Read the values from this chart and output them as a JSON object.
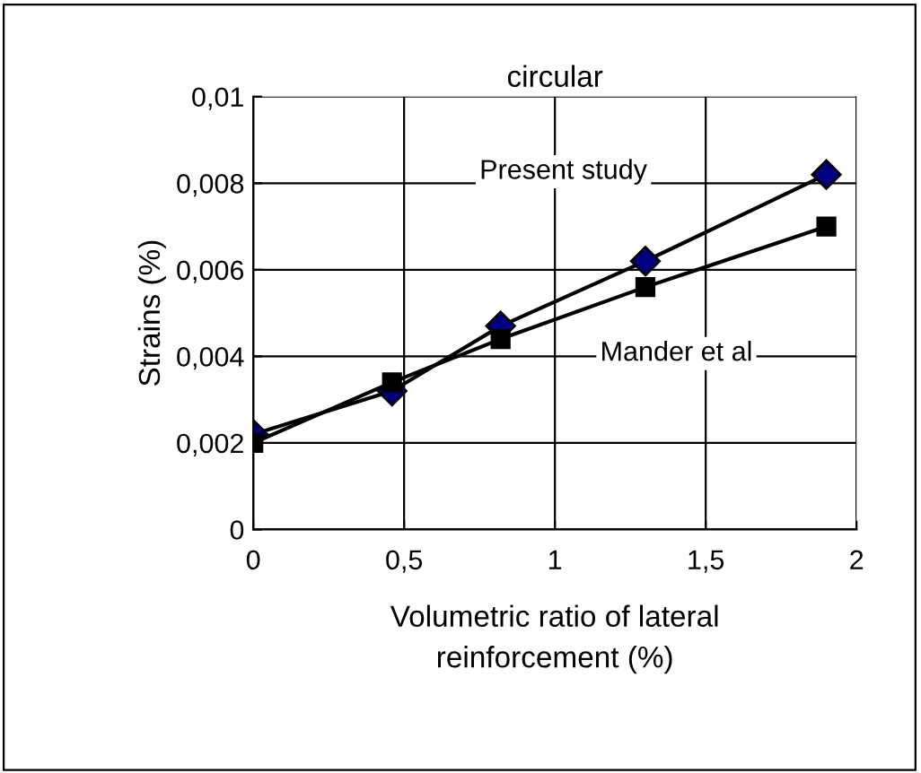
{
  "chart_data": {
    "type": "line",
    "title": "circular",
    "xlabel": "Volumetric ratio of lateral\nreinforcement (%)",
    "ylabel": "Strains (%)",
    "x": [
      0,
      0.46,
      0.82,
      1.3,
      1.9
    ],
    "series": [
      {
        "name": "Present study",
        "color": "#000080",
        "marker": "diamond",
        "values": [
          0.0022,
          0.0032,
          0.0047,
          0.0062,
          0.0082
        ]
      },
      {
        "name": "Mander et al",
        "color": "#000000",
        "marker": "square",
        "values": [
          0.002,
          0.0034,
          0.0044,
          0.0056,
          0.007
        ]
      }
    ],
    "xlim": [
      0,
      2
    ],
    "ylim": [
      0,
      0.01
    ],
    "xticks": [
      0,
      {
        "value": 0.5,
        "label": "0,5"
      },
      1,
      {
        "value": 1.5,
        "label": "1,5"
      },
      2
    ],
    "yticks": [
      0,
      {
        "value": 0.002,
        "label": "0,002"
      },
      {
        "value": 0.004,
        "label": "0,004"
      },
      {
        "value": 0.006,
        "label": "0,006"
      },
      {
        "value": 0.008,
        "label": "0,008"
      },
      {
        "value": 0.01,
        "label": "0,01"
      }
    ],
    "grid": true,
    "line_style": "solid"
  }
}
